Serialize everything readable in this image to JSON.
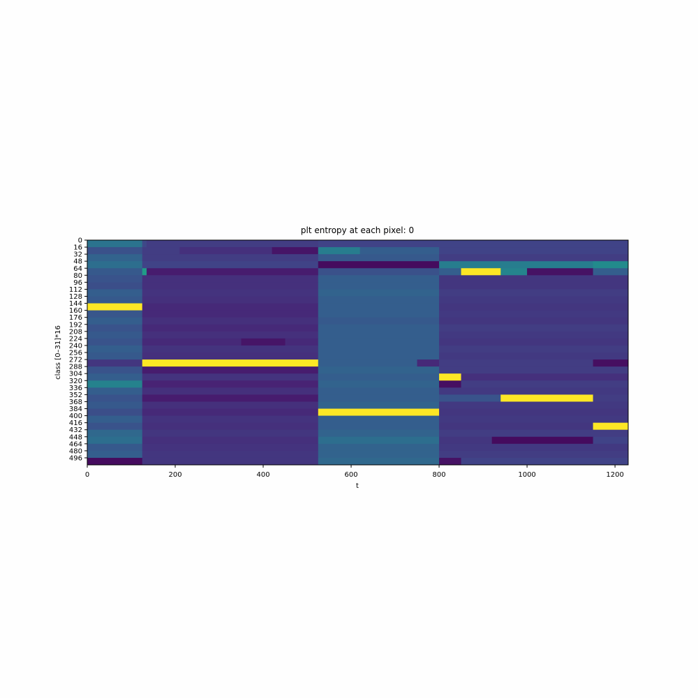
{
  "chart_data": {
    "type": "heatmap",
    "title": "plt entropy at each pixel: 0",
    "xlabel": "t",
    "ylabel": "class [0–31]*16",
    "xlim": [
      0,
      1230
    ],
    "ylim": [
      0,
      512
    ],
    "x_ticks": [
      0,
      200,
      400,
      600,
      800,
      1000,
      1200
    ],
    "y_ticks": [
      0,
      16,
      32,
      48,
      64,
      80,
      96,
      112,
      128,
      144,
      160,
      176,
      192,
      208,
      224,
      240,
      256,
      272,
      288,
      304,
      320,
      336,
      352,
      368,
      384,
      400,
      416,
      432,
      448,
      464,
      480,
      496
    ],
    "colormap": "viridis",
    "value_range": [
      0,
      1
    ],
    "segments": [
      {
        "rows": [
          0,
          16
        ],
        "t_boundaries": [
          0,
          125,
          135,
          525,
          1230
        ],
        "values": [
          0.38,
          0.22,
          0.18,
          0.2
        ]
      },
      {
        "rows": [
          16,
          32
        ],
        "t_boundaries": [
          0,
          125,
          210,
          420,
          525,
          620,
          800,
          1230
        ],
        "values": [
          0.25,
          0.18,
          0.14,
          0.06,
          0.42,
          0.3,
          0.2
        ]
      },
      {
        "rows": [
          32,
          48
        ],
        "t_boundaries": [
          0,
          125,
          525,
          800,
          1230
        ],
        "values": [
          0.32,
          0.18,
          0.28,
          0.18
        ]
      },
      {
        "rows": [
          48,
          64
        ],
        "t_boundaries": [
          0,
          125,
          525,
          800,
          1150,
          1230
        ],
        "values": [
          0.36,
          0.2,
          0.03,
          0.42,
          0.48
        ]
      },
      {
        "rows": [
          64,
          80
        ],
        "t_boundaries": [
          0,
          125,
          135,
          525,
          800,
          850,
          940,
          1000,
          1150,
          1230
        ],
        "values": [
          0.28,
          0.55,
          0.08,
          0.25,
          0.3,
          1.0,
          0.45,
          0.05,
          0.3
        ]
      },
      {
        "rows": [
          80,
          96
        ],
        "t_boundaries": [
          0,
          125,
          525,
          800,
          1230
        ],
        "values": [
          0.26,
          0.14,
          0.3,
          0.16
        ]
      },
      {
        "rows": [
          96,
          112
        ],
        "t_boundaries": [
          0,
          125,
          525,
          800,
          1230
        ],
        "values": [
          0.24,
          0.14,
          0.3,
          0.16
        ]
      },
      {
        "rows": [
          112,
          128
        ],
        "t_boundaries": [
          0,
          125,
          525,
          800,
          1230
        ],
        "values": [
          0.3,
          0.15,
          0.32,
          0.18
        ]
      },
      {
        "rows": [
          128,
          144
        ],
        "t_boundaries": [
          0,
          125,
          525,
          800,
          1230
        ],
        "values": [
          0.28,
          0.14,
          0.3,
          0.17
        ]
      },
      {
        "rows": [
          144,
          160
        ],
        "t_boundaries": [
          0,
          125,
          525,
          800,
          1230
        ],
        "values": [
          1.0,
          0.12,
          0.3,
          0.16
        ]
      },
      {
        "rows": [
          160,
          176
        ],
        "t_boundaries": [
          0,
          125,
          525,
          800,
          1230
        ],
        "values": [
          0.27,
          0.12,
          0.3,
          0.17
        ]
      },
      {
        "rows": [
          176,
          192
        ],
        "t_boundaries": [
          0,
          125,
          525,
          800,
          1230
        ],
        "values": [
          0.3,
          0.14,
          0.28,
          0.16
        ]
      },
      {
        "rows": [
          192,
          208
        ],
        "t_boundaries": [
          0,
          125,
          525,
          800,
          1230
        ],
        "values": [
          0.26,
          0.12,
          0.3,
          0.18
        ]
      },
      {
        "rows": [
          208,
          224
        ],
        "t_boundaries": [
          0,
          125,
          525,
          800,
          1230
        ],
        "values": [
          0.28,
          0.14,
          0.3,
          0.17
        ]
      },
      {
        "rows": [
          224,
          240
        ],
        "t_boundaries": [
          0,
          125,
          350,
          450,
          525,
          800,
          1230
        ],
        "values": [
          0.26,
          0.12,
          0.06,
          0.12,
          0.3,
          0.16
        ]
      },
      {
        "rows": [
          240,
          256
        ],
        "t_boundaries": [
          0,
          125,
          525,
          800,
          1230
        ],
        "values": [
          0.3,
          0.15,
          0.3,
          0.18
        ]
      },
      {
        "rows": [
          256,
          272
        ],
        "t_boundaries": [
          0,
          125,
          525,
          800,
          1230
        ],
        "values": [
          0.28,
          0.14,
          0.3,
          0.17
        ]
      },
      {
        "rows": [
          272,
          288
        ],
        "t_boundaries": [
          0,
          125,
          525,
          750,
          800,
          1150,
          1230
        ],
        "values": [
          0.16,
          1.0,
          0.3,
          0.12,
          0.18,
          0.04
        ]
      },
      {
        "rows": [
          288,
          304
        ],
        "t_boundaries": [
          0,
          125,
          525,
          800,
          1230
        ],
        "values": [
          0.26,
          0.08,
          0.32,
          0.18
        ]
      },
      {
        "rows": [
          304,
          320
        ],
        "t_boundaries": [
          0,
          125,
          525,
          800,
          850,
          1230
        ],
        "values": [
          0.3,
          0.15,
          0.3,
          1.0,
          0.14
        ]
      },
      {
        "rows": [
          320,
          336
        ],
        "t_boundaries": [
          0,
          125,
          525,
          800,
          850,
          1230
        ],
        "values": [
          0.44,
          0.1,
          0.32,
          0.04,
          0.18
        ]
      },
      {
        "rows": [
          336,
          352
        ],
        "t_boundaries": [
          0,
          125,
          525,
          800,
          1230
        ],
        "values": [
          0.3,
          0.14,
          0.3,
          0.17
        ]
      },
      {
        "rows": [
          352,
          368
        ],
        "t_boundaries": [
          0,
          125,
          525,
          800,
          940,
          1150,
          1230
        ],
        "values": [
          0.26,
          0.08,
          0.3,
          0.26,
          1.0,
          0.18
        ]
      },
      {
        "rows": [
          368,
          384
        ],
        "t_boundaries": [
          0,
          125,
          525,
          800,
          1230
        ],
        "values": [
          0.28,
          0.14,
          0.32,
          0.17
        ]
      },
      {
        "rows": [
          384,
          400
        ],
        "t_boundaries": [
          0,
          125,
          525,
          800,
          1230
        ],
        "values": [
          0.24,
          0.12,
          1.0,
          0.16
        ]
      },
      {
        "rows": [
          400,
          416
        ],
        "t_boundaries": [
          0,
          125,
          525,
          800,
          1230
        ],
        "values": [
          0.3,
          0.15,
          0.3,
          0.17
        ]
      },
      {
        "rows": [
          416,
          432
        ],
        "t_boundaries": [
          0,
          125,
          525,
          800,
          1150,
          1230
        ],
        "values": [
          0.26,
          0.14,
          0.3,
          0.16,
          1.0
        ]
      },
      {
        "rows": [
          432,
          448
        ],
        "t_boundaries": [
          0,
          125,
          525,
          800,
          1230
        ],
        "values": [
          0.34,
          0.16,
          0.32,
          0.18
        ]
      },
      {
        "rows": [
          448,
          464
        ],
        "t_boundaries": [
          0,
          125,
          525,
          800,
          920,
          1150,
          1230
        ],
        "values": [
          0.36,
          0.14,
          0.36,
          0.16,
          0.03,
          0.2
        ]
      },
      {
        "rows": [
          464,
          480
        ],
        "t_boundaries": [
          0,
          125,
          525,
          800,
          1230
        ],
        "values": [
          0.28,
          0.15,
          0.32,
          0.17
        ]
      },
      {
        "rows": [
          480,
          496
        ],
        "t_boundaries": [
          0,
          125,
          525,
          800,
          1230
        ],
        "values": [
          0.3,
          0.16,
          0.32,
          0.18
        ]
      },
      {
        "rows": [
          496,
          512
        ],
        "t_boundaries": [
          0,
          125,
          525,
          800,
          850,
          1230
        ],
        "values": [
          0.03,
          0.16,
          0.34,
          0.05,
          0.2
        ]
      }
    ]
  }
}
